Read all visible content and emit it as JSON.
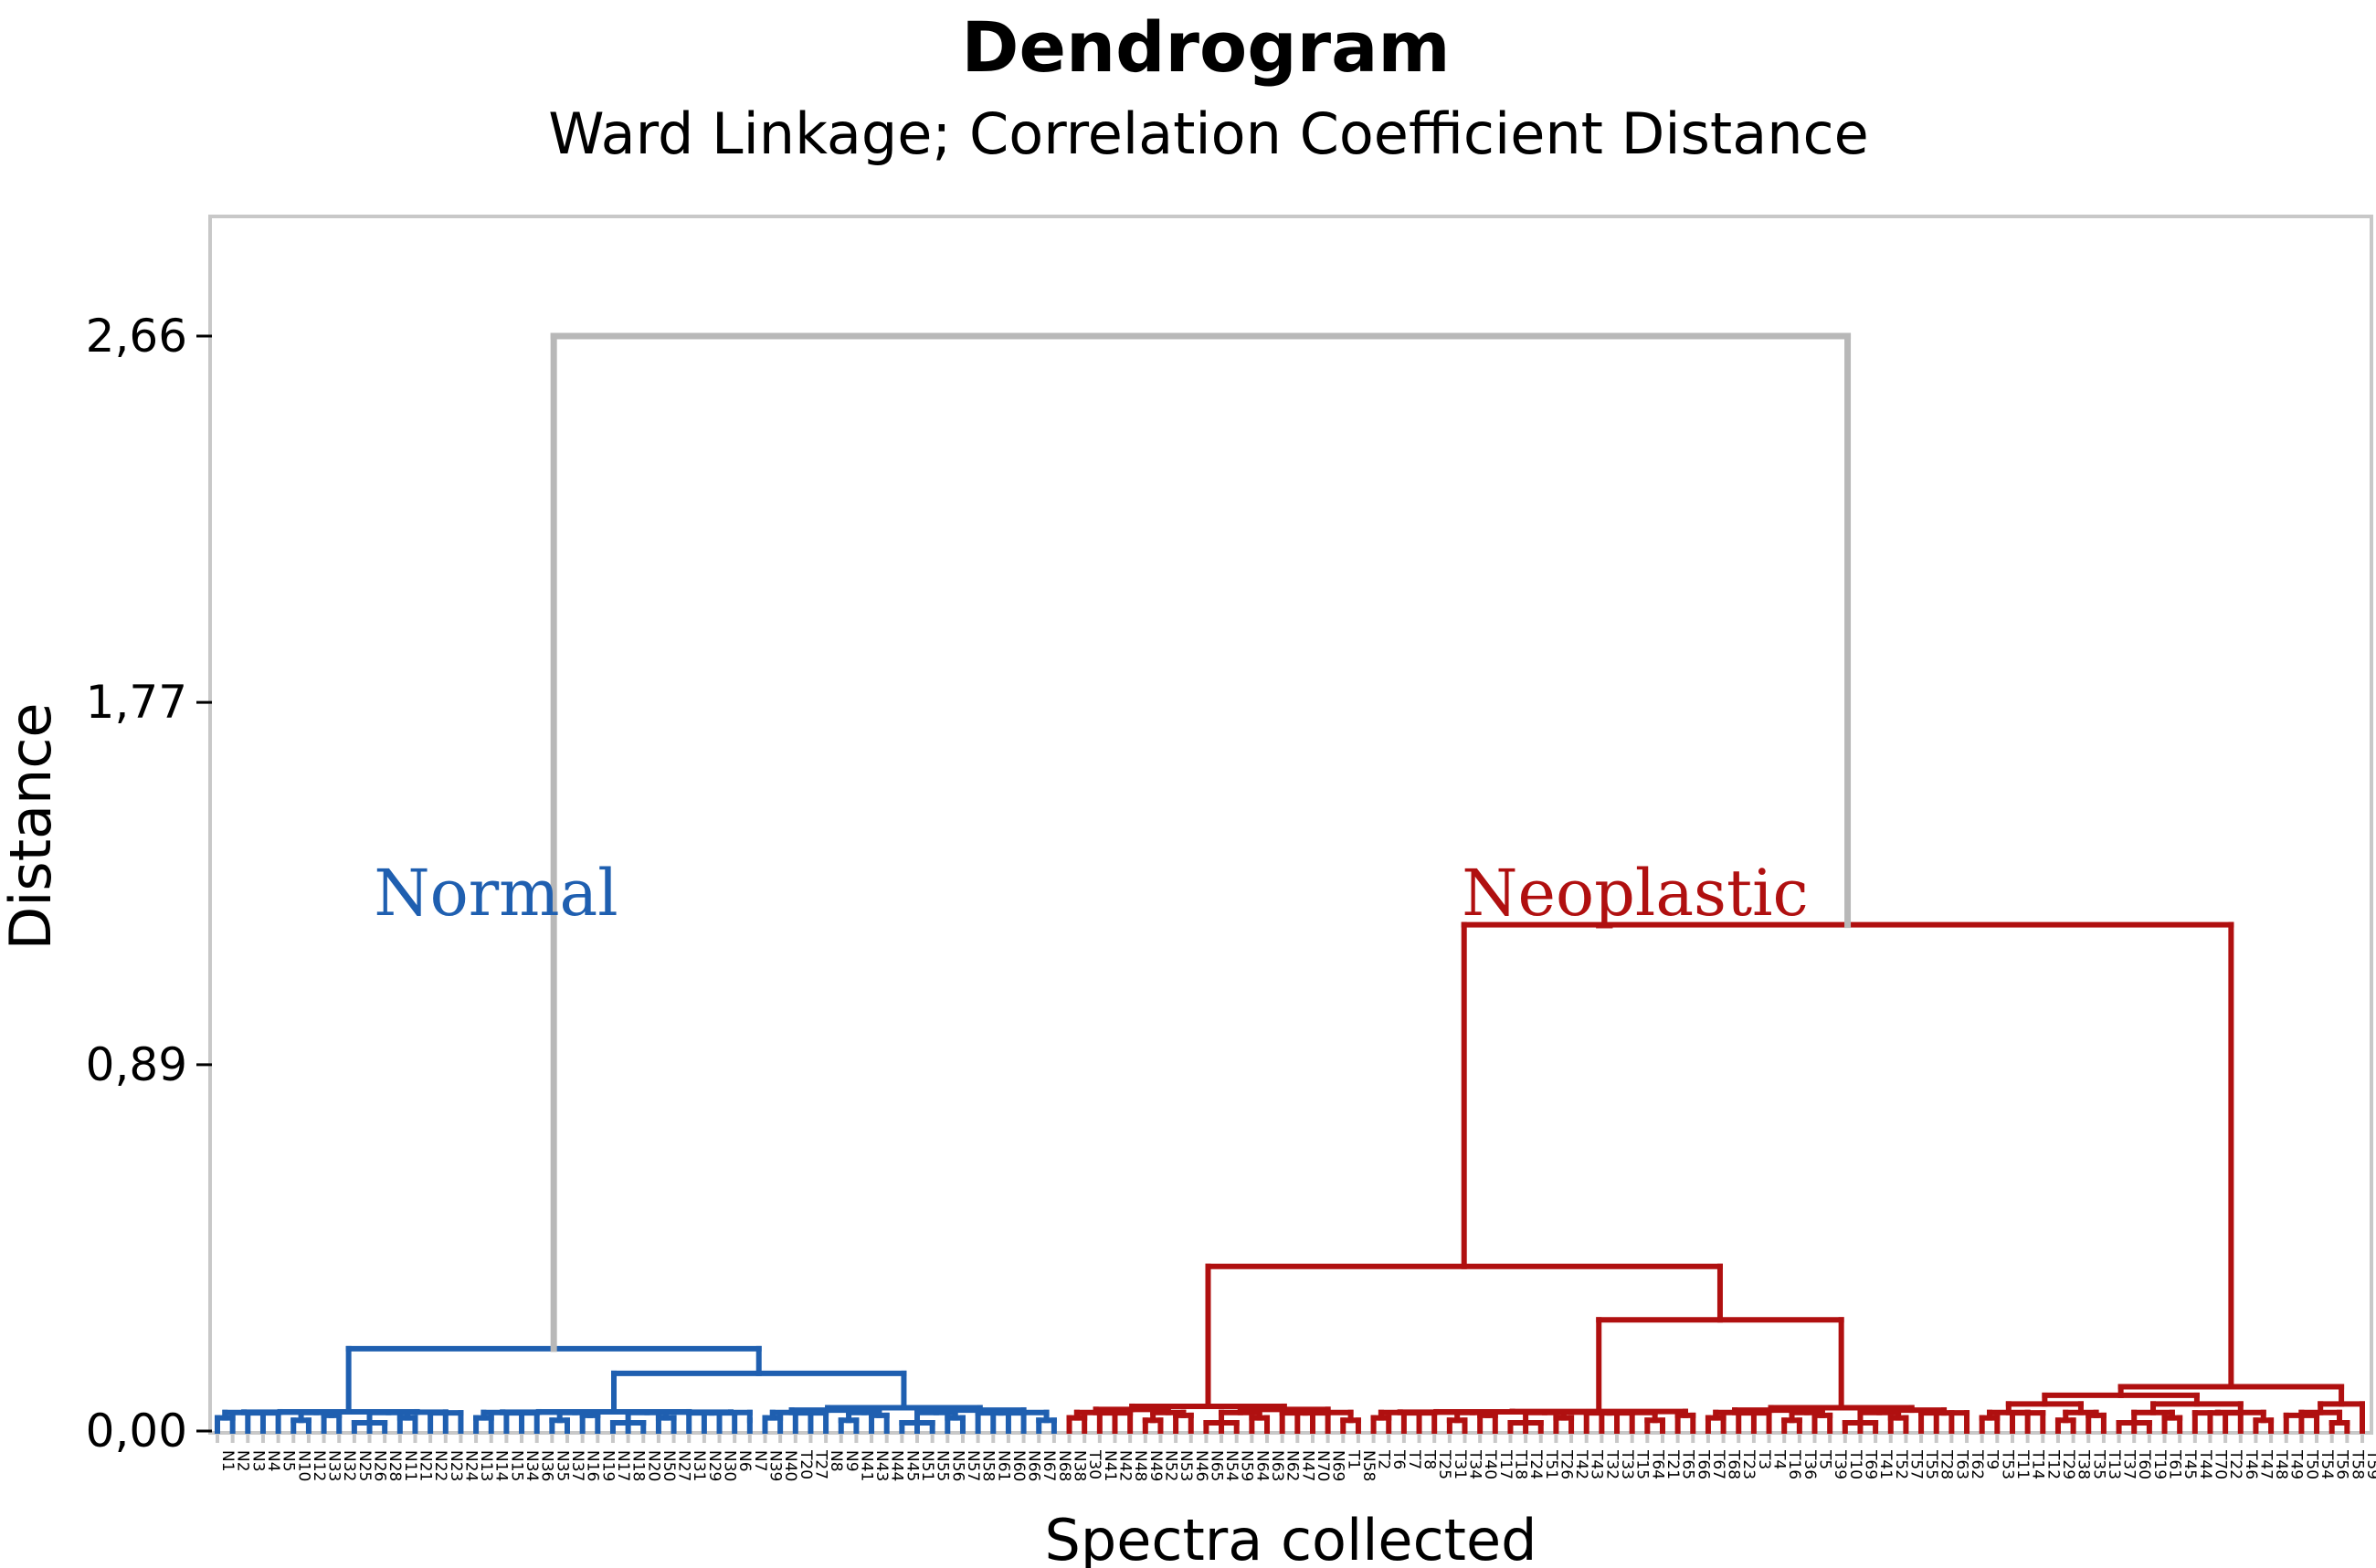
{
  "chart_data": {
    "type": "dendrogram",
    "title": "Dendrogram",
    "subtitle": "Ward Linkage; Correlation Coefficient Distance",
    "xlabel": "Spectra collected",
    "ylabel": "Distance",
    "ylim": [
      0,
      2.94
    ],
    "yticks": [
      0.0,
      0.89,
      1.77,
      2.66
    ],
    "ytick_labels": [
      "0,00",
      "0,89",
      "1,77",
      "2,66"
    ],
    "colors": {
      "normal": "#1f5fb0",
      "neoplastic": "#b01010",
      "root": "#b8b8b8"
    },
    "clusters": [
      {
        "label": "Normal",
        "color": "#1f5fb0",
        "leaves": [
          "N1",
          "N2",
          "N3",
          "N4",
          "N5",
          "N10",
          "N12",
          "N33",
          "N32",
          "N25",
          "N26",
          "N28",
          "N11",
          "N21",
          "N22",
          "N23",
          "N24",
          "N13",
          "N14",
          "N15",
          "N34",
          "N36",
          "N35",
          "N37",
          "N16",
          "N19",
          "N17",
          "N18",
          "N20",
          "N50",
          "N27",
          "N31",
          "N29",
          "N30",
          "N6",
          "N7",
          "N39",
          "N40",
          "T20",
          "T27",
          "N8",
          "N9",
          "N41",
          "N43",
          "N44",
          "N45",
          "N51",
          "N55",
          "N56",
          "N57",
          "N58",
          "N61",
          "N60",
          "N66",
          "N67",
          "N68"
        ]
      },
      {
        "label": "Neoplastic",
        "color": "#b01010",
        "leaves": [
          "N38",
          "T30",
          "N41",
          "N42",
          "N48",
          "N49",
          "N52",
          "N53",
          "N46",
          "N65",
          "N54",
          "N59",
          "N64",
          "N63",
          "N62",
          "N47",
          "N70",
          "N69",
          "T1",
          "N58",
          "T2",
          "T6",
          "T7",
          "T8",
          "T25",
          "T31",
          "T34",
          "T40",
          "T17",
          "T18",
          "T24",
          "T51",
          "T26",
          "T42",
          "T43",
          "T32",
          "T33",
          "T15",
          "T64",
          "T21",
          "T65",
          "T66",
          "T67",
          "T68",
          "T23",
          "T3",
          "T4",
          "T16",
          "T36",
          "T5",
          "T39",
          "T10",
          "T69",
          "T41",
          "T52",
          "T57",
          "T55",
          "T28",
          "T63",
          "T62",
          "T9",
          "T53",
          "T11",
          "T14",
          "T12",
          "T29",
          "T38",
          "T35",
          "T13",
          "T37",
          "T60",
          "T19",
          "T61",
          "T45",
          "T44",
          "T70",
          "T22",
          "T46",
          "T47",
          "T48",
          "T49",
          "T50",
          "T54",
          "T56",
          "T58",
          "T59"
        ]
      }
    ],
    "merges": [
      {
        "id": "root",
        "height": 2.66,
        "children": [
          "normal",
          "neoplastic"
        ]
      },
      {
        "id": "neoplastic",
        "height": 1.23,
        "children": [
          "neo_left",
          "neo_right"
        ]
      },
      {
        "id": "neo_left",
        "height": 0.4,
        "children": [
          "neo_a",
          "neo_b"
        ]
      },
      {
        "id": "neo_a",
        "height": 0.1,
        "children": [
          "neo_a1",
          "neo_a2"
        ]
      },
      {
        "id": "neo_b",
        "height": 0.27,
        "children": [
          "neo_b1",
          "neo_b2"
        ]
      },
      {
        "id": "neo_right",
        "height": 0.17,
        "children": [
          "neo_c",
          "neo_d"
        ]
      },
      {
        "id": "normal",
        "height": 0.2,
        "children": [
          "norm_a",
          "norm_b"
        ]
      },
      {
        "id": "norm_b",
        "height": 0.14,
        "children": [
          "norm_b1",
          "norm_b2"
        ]
      }
    ],
    "annotations": [
      {
        "text": "Normal",
        "color": "#1f5fb0"
      },
      {
        "text": "Neoplastic",
        "color": "#b01010"
      }
    ]
  }
}
